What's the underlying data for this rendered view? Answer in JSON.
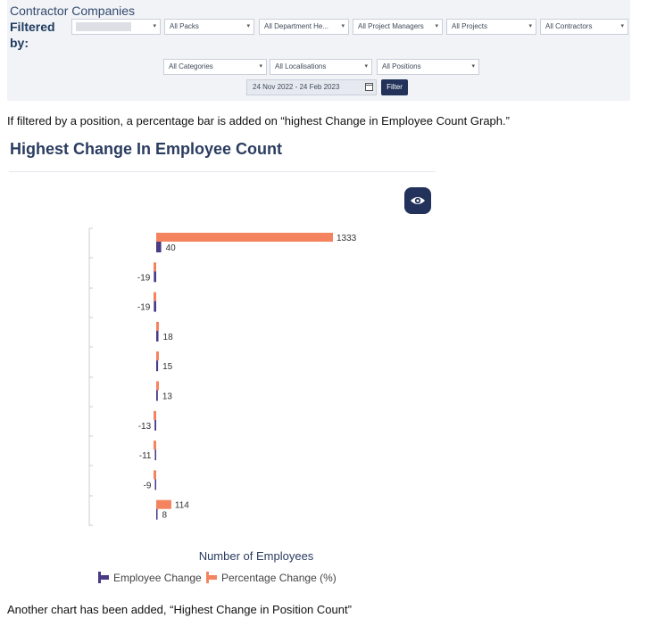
{
  "filter_panel": {
    "title": "Contractor Companies",
    "filtered_by": "Filtered by:",
    "row1": [
      "",
      "All Packs",
      "All Department He...",
      "All Project Managers",
      "All Projects",
      "All Contractors"
    ],
    "row2": [
      "All Categories",
      "All Localisations",
      "All Positions"
    ],
    "date_range": "24 Nov 2022 - 24 Feb 2023",
    "filter_button": "Filter"
  },
  "note_top": "If filtered by a position, a percentage bar is added on “highest Change in Employee Count Graph.”",
  "note_bottom": "Another chart has been added, “Highest Change in Position Count”",
  "colors": {
    "employee": "#4b3a86",
    "percentage": "#f4845f",
    "accent": "#22325a"
  },
  "chart_data": {
    "type": "bar",
    "orientation": "horizontal",
    "title": "Highest Change In Employee Count",
    "xlabel": "Number of Employees",
    "ylabel": "",
    "series": [
      {
        "name": "Employee Change",
        "values": [
          40,
          -19,
          -19,
          18,
          15,
          13,
          -13,
          -11,
          -9,
          8
        ]
      },
      {
        "name": "Percentage Change (%)",
        "values": [
          1333,
          -5,
          -5,
          3,
          5,
          2,
          -4,
          -4,
          -2,
          114
        ]
      }
    ],
    "grid": false,
    "legend_position": "bottom"
  }
}
